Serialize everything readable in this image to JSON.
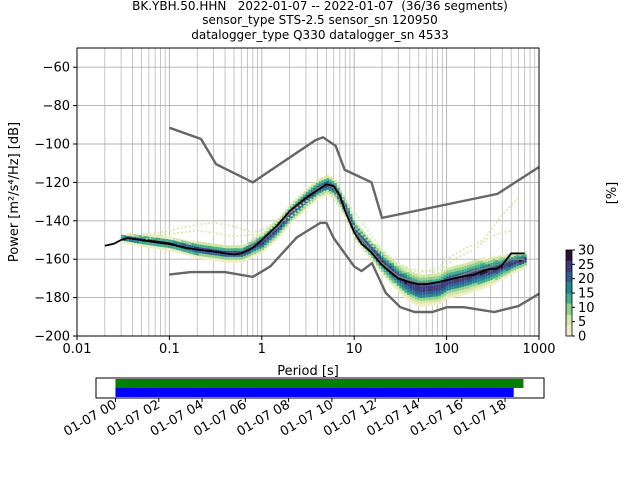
{
  "title_lines": [
    "BK.YBH.50.HHN   2022-01-07 -- 2022-01-07  (36/36 segments)",
    "sensor_type STS-2.5 sensor_sn 120950",
    "datalogger_type Q330 datalogger_sn 4533"
  ],
  "chart_data": [
    {
      "type": "heatmap",
      "xlabel": "Period [s]",
      "ylabel": "Power [m²/s⁴/Hz] [dB]",
      "xscale": "log",
      "xlim": [
        0.01,
        1000
      ],
      "ylim": [
        -200,
        -50
      ],
      "x_ticks": [
        0.01,
        0.1,
        1,
        10,
        100,
        1000
      ],
      "x_tick_labels": [
        "0.01",
        "0.1",
        "1",
        "10",
        "100",
        "1000"
      ],
      "y_ticks": [
        -200,
        -180,
        -160,
        -140,
        -120,
        -100,
        -80,
        -60
      ],
      "y_tick_labels": [
        "−200",
        "−180",
        "−160",
        "−140",
        "−120",
        "−100",
        "−80",
        "−60"
      ],
      "grid": true,
      "colorbar": {
        "label": "[%]",
        "range": [
          0,
          30
        ],
        "ticks": [
          0,
          5,
          10,
          15,
          20,
          25,
          30
        ],
        "tick_labels": [
          "0",
          "5",
          "10",
          "15",
          "20",
          "25",
          "30"
        ],
        "colors": [
          "#f0edc6",
          "#d3e6a4",
          "#8fd08e",
          "#3fae8a",
          "#21888f",
          "#2f5f8e",
          "#3b3a7a",
          "#2b1230"
        ]
      },
      "noise_model_high": {
        "period": [
          0.1,
          0.22,
          0.32,
          0.8,
          3.8,
          4.6,
          6.3,
          7.9,
          15.4,
          20,
          354.8,
          1000
        ],
        "power": [
          -91.5,
          -97.4,
          -110.5,
          -120,
          -98,
          -96.5,
          -101,
          -113.5,
          -120,
          -138.5,
          -126,
          -112
        ]
      },
      "noise_model_low": {
        "period": [
          0.1,
          0.17,
          0.4,
          0.8,
          1.24,
          2.4,
          4.3,
          5,
          6,
          10,
          12,
          15.6,
          21.9,
          31.6,
          45,
          70,
          101,
          154,
          328,
          600,
          1000
        ],
        "power": [
          -168,
          -166.7,
          -166.7,
          -169.2,
          -163.7,
          -148.6,
          -141.1,
          -141.1,
          -149,
          -163.8,
          -166.2,
          -162.1,
          -177.5,
          -185,
          -187.5,
          -187.5,
          -185,
          -185,
          -187.5,
          -184.4,
          -178
        ]
      },
      "mode_curve": {
        "period": [
          0.02,
          0.025,
          0.03,
          0.035,
          0.05,
          0.07,
          0.1,
          0.15,
          0.2,
          0.3,
          0.4,
          0.5,
          0.6,
          0.8,
          1,
          1.5,
          2,
          3,
          4,
          5,
          6,
          7,
          8,
          10,
          12,
          15,
          20,
          25,
          30,
          40,
          50,
          60,
          80,
          100,
          120,
          150,
          200,
          250,
          300,
          350,
          400,
          500,
          700
        ],
        "power": [
          -153,
          -152,
          -150,
          -149,
          -150,
          -151,
          -152,
          -154,
          -155,
          -156,
          -157,
          -157.5,
          -157,
          -154,
          -150,
          -142,
          -135,
          -128,
          -124,
          -121,
          -122,
          -127,
          -135,
          -146,
          -152,
          -156,
          -163,
          -167,
          -170,
          -172,
          -173,
          -173,
          -172,
          -171,
          -170,
          -169,
          -168,
          -166,
          -165,
          -165,
          -163,
          -157,
          -157
        ]
      },
      "mean_curve": {
        "period": [
          0.03,
          0.05,
          0.1,
          0.2,
          0.4,
          0.6,
          1,
          1.5,
          2,
          3,
          4,
          5,
          6,
          8,
          10,
          15,
          20,
          30,
          50,
          80,
          100,
          150,
          200,
          300,
          500,
          700
        ],
        "power": [
          -149,
          -150,
          -152,
          -155,
          -157,
          -157,
          -150,
          -143,
          -136,
          -128,
          -123,
          -121,
          -123,
          -133,
          -145,
          -155,
          -162,
          -169,
          -172.5,
          -172,
          -171,
          -168,
          -166,
          -164,
          -160,
          -160
        ]
      },
      "heatmap_band": {
        "period": [
          0.03,
          0.05,
          0.1,
          0.2,
          0.4,
          0.6,
          1,
          1.5,
          2,
          3,
          4,
          5,
          6,
          8,
          10,
          15,
          20,
          30,
          40,
          50,
          80,
          100,
          150,
          200,
          300,
          500,
          700
        ],
        "center": [
          -149,
          -150,
          -152,
          -155,
          -157,
          -157,
          -151,
          -143,
          -136,
          -128,
          -123,
          -121,
          -123,
          -134,
          -145,
          -155,
          -162,
          -170,
          -174,
          -176,
          -175,
          -172,
          -170,
          -168,
          -166,
          -162,
          -160
        ],
        "halfwidth": [
          2,
          3,
          3,
          4,
          4,
          4,
          5,
          5,
          5,
          5,
          5,
          5,
          5,
          5,
          5,
          5,
          6,
          7,
          8,
          8,
          8,
          8,
          8,
          8,
          7,
          5,
          4
        ]
      },
      "outlier_traces": [
        {
          "period": [
            0.05,
            0.1,
            0.2,
            0.3,
            0.5,
            0.8,
            1,
            2,
            3,
            5,
            7,
            10,
            15,
            20,
            30,
            50,
            80,
            100,
            150,
            250,
            400,
            600
          ],
          "power": [
            -148,
            -145,
            -142,
            -141,
            -143,
            -146,
            -145,
            -136,
            -130,
            -125,
            -127,
            -135,
            -147,
            -155,
            -163,
            -167,
            -165,
            -160,
            -155,
            -150,
            -137,
            -128
          ]
        },
        {
          "period": [
            0.05,
            0.1,
            0.2,
            0.5,
            1,
            2,
            5,
            10,
            20,
            40,
            80,
            120,
            200,
            300,
            500
          ],
          "power": [
            -150,
            -147,
            -145,
            -148,
            -147,
            -138,
            -124,
            -143,
            -158,
            -165,
            -167,
            -160,
            -155,
            -148,
            -145
          ]
        }
      ]
    },
    {
      "type": "bar",
      "title": "",
      "x_tick_labels": [
        "01-07 00",
        "01-07 02",
        "01-07 04",
        "01-07 06",
        "01-07 08",
        "01-07 10",
        "01-07 12",
        "01-07 14",
        "01-07 16",
        "01-07 18"
      ],
      "x_ticks_hours": [
        0,
        2,
        4,
        6,
        8,
        10,
        12,
        14,
        16,
        18
      ],
      "xlim_hours": [
        -0.9,
        19.8
      ],
      "series": [
        {
          "color": "#008000",
          "start_hour": 0,
          "end_hour": 18.85
        },
        {
          "color": "#0000ff",
          "start_hour": 0,
          "end_hour": 18.4
        }
      ]
    }
  ]
}
